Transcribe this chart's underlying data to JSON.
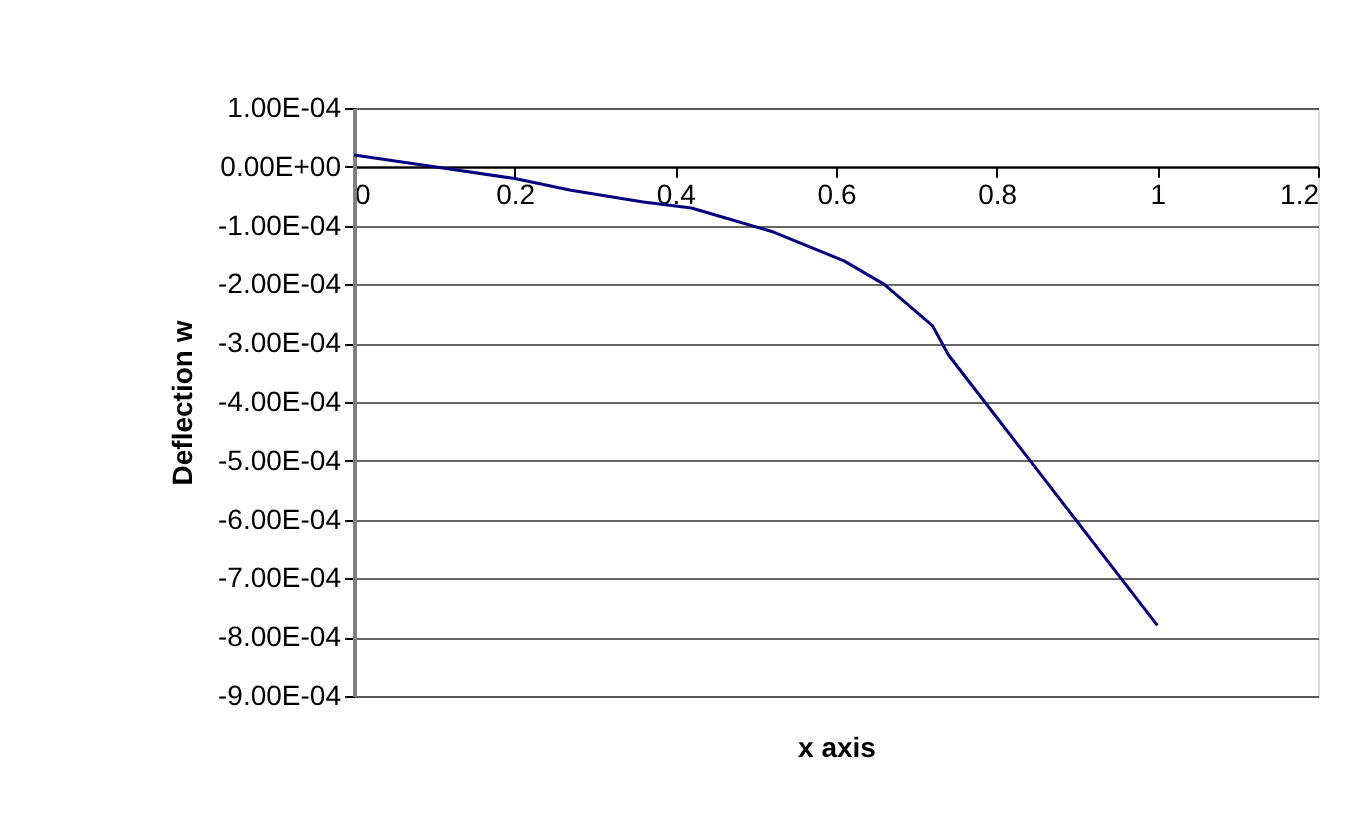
{
  "chart_data": {
    "type": "line",
    "xlabel": "x axis",
    "ylabel": "Deflection w",
    "x": [
      0,
      0.1,
      0.2,
      0.27,
      0.36,
      0.42,
      0.47,
      0.52,
      0.61,
      0.66,
      0.72,
      0.74,
      1.0
    ],
    "series": [
      {
        "color": "#000080",
        "values": [
          2e-05,
          0,
          -2e-05,
          -4e-05,
          -6e-05,
          -7e-05,
          -9e-05,
          -0.00011,
          -0.00016,
          -0.0002,
          -0.00027,
          -0.00032,
          -0.00078
        ]
      }
    ],
    "xlim": [
      0,
      1.2
    ],
    "xticks": [
      0,
      0.2,
      0.4,
      0.6,
      0.8,
      1,
      1.2
    ],
    "ylim": [
      -0.0009,
      0.0001
    ],
    "yticks": [
      {
        "value": 0.0001,
        "label": "1.00E-04"
      },
      {
        "value": 0,
        "label": "0.00E+00"
      },
      {
        "value": -0.0001,
        "label": "-1.00E-04"
      },
      {
        "value": -0.0002,
        "label": "-2.00E-04"
      },
      {
        "value": -0.0003,
        "label": "-3.00E-04"
      },
      {
        "value": -0.0004,
        "label": "-4.00E-04"
      },
      {
        "value": -0.0005,
        "label": "-5.00E-04"
      },
      {
        "value": -0.0006,
        "label": "-6.00E-04"
      },
      {
        "value": -0.0007,
        "label": "-7.00E-04"
      },
      {
        "value": -0.0008,
        "label": "-8.00E-04"
      },
      {
        "value": -0.0009,
        "label": "-9.00E-04"
      }
    ],
    "grid": "y",
    "marker": "none",
    "line_style": "solid"
  }
}
